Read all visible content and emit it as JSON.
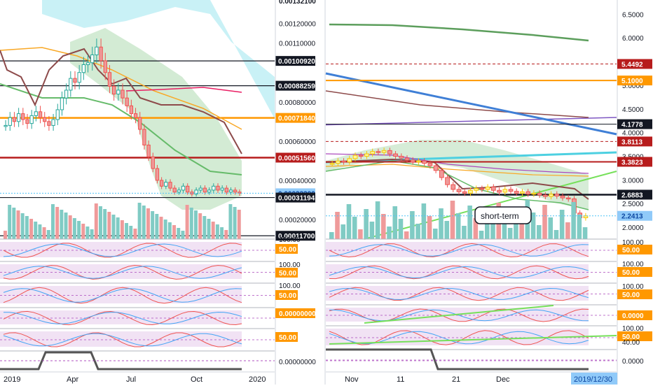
{
  "left_chart": {
    "price_axis": {
      "top_label": "0.00132100",
      "ticks": [
        "0.00120000",
        "0.00110000",
        "0.00080000",
        "0.00060000",
        "0.00040000",
        "0.00020000"
      ],
      "highlighted": [
        {
          "label": "0.00100920",
          "value": 0.0010092,
          "style": "black"
        },
        {
          "label": "0.00088259",
          "value": 0.00088259,
          "style": "black"
        },
        {
          "label": "0.00071840",
          "value": 0.0007184,
          "style": "orange"
        },
        {
          "label": "0.00051560",
          "value": 0.0005156,
          "style": "darkred"
        },
        {
          "label": "0.00033390",
          "value": 0.0003339,
          "style": "lightblue"
        },
        {
          "label": "0.00031194",
          "value": 0.00031194,
          "style": "black"
        },
        {
          "label": "0.00011700",
          "value": 0.000117,
          "style": "black"
        }
      ]
    },
    "indicator_labels": [
      "100.00",
      "50.00",
      "100.00",
      "50.00",
      "100.00",
      "50.00",
      "0.00000000",
      "50.00",
      "0.00000000"
    ],
    "time_labels": [
      "2019",
      "Apr",
      "Jul",
      "Oct",
      "2020"
    ]
  },
  "right_chart": {
    "price_axis": {
      "ticks": [
        "6.5000",
        "6.0000",
        "5.0000",
        "4.5000",
        "4.0000",
        "3.5000",
        "3.0000",
        "2.5000",
        "2.0000"
      ],
      "highlighted": [
        {
          "label": "5.4492",
          "value": 5.4492,
          "style": "darkred"
        },
        {
          "label": "5.1000",
          "value": 5.1,
          "style": "orange"
        },
        {
          "label": "4.1778",
          "value": 4.1778,
          "style": "black"
        },
        {
          "label": "3.8113",
          "value": 3.8113,
          "style": "darkred"
        },
        {
          "label": "3.3823",
          "value": 3.3823,
          "style": "darkred"
        },
        {
          "label": "2.6883",
          "value": 2.6883,
          "style": "black"
        },
        {
          "label": "2.2413",
          "value": 2.2413,
          "style": "lightblue"
        }
      ]
    },
    "indicator_labels": [
      "100.00",
      "50.00",
      "100.00",
      "50.00",
      "100.00",
      "50.00",
      "0.0000",
      "100.00",
      "50.00",
      "40.00",
      "0.0000"
    ],
    "time_labels": [
      "Nov",
      "11",
      "21",
      "Dec"
    ],
    "cursor_date": "2019/12/30",
    "annotation": "short-term"
  },
  "chart_data": [
    {
      "type": "candlestick",
      "period": "2019",
      "ylim": [
        0.0001,
        0.00132
      ],
      "closes": [
        0.00068,
        0.00072,
        0.0007,
        0.00074,
        0.00071,
        0.00069,
        0.00073,
        0.00075,
        0.00072,
        0.0007,
        0.00068,
        0.00071,
        0.00076,
        0.00082,
        0.00086,
        0.00092,
        0.0009,
        0.00095,
        0.00099,
        0.001,
        0.00104,
        0.00108,
        0.00101,
        0.00095,
        0.00088,
        0.00084,
        0.00086,
        0.00082,
        0.00078,
        0.00074,
        0.00072,
        0.00066,
        0.00058,
        0.00052,
        0.00046,
        0.0004,
        0.00037,
        0.00039,
        0.00036,
        0.00034,
        0.00035,
        0.00037,
        0.00034,
        0.00033,
        0.00035,
        0.00036,
        0.00034,
        0.00035,
        0.00037,
        0.00035,
        0.00036,
        0.00034,
        0.00035,
        0.00034,
        0.000334
      ],
      "reference_lines": [
        0.0010092,
        0.00088259,
        0.0007184,
        0.0005156,
        0.00031194,
        0.000117
      ],
      "current": 0.0003339
    },
    {
      "type": "candlestick",
      "period": "2019-10-28 to 2019-12-30",
      "ylim": [
        1.75,
        6.8
      ],
      "closes": [
        3.35,
        3.4,
        3.38,
        3.45,
        3.52,
        3.5,
        3.55,
        3.6,
        3.58,
        3.62,
        3.55,
        3.5,
        3.46,
        3.42,
        3.38,
        3.4,
        3.35,
        3.3,
        3.2,
        3.05,
        2.9,
        2.8,
        2.75,
        2.72,
        2.78,
        2.82,
        2.8,
        2.85,
        2.78,
        2.74,
        2.8,
        2.76,
        2.72,
        2.75,
        2.7,
        2.72,
        2.68,
        2.65,
        2.7,
        2.66,
        2.62,
        2.6,
        2.3,
        2.2,
        2.24
      ],
      "reference_lines": [
        5.4492,
        5.1,
        4.1778,
        3.8113,
        3.3823,
        2.6883
      ],
      "current": 2.2413
    }
  ]
}
